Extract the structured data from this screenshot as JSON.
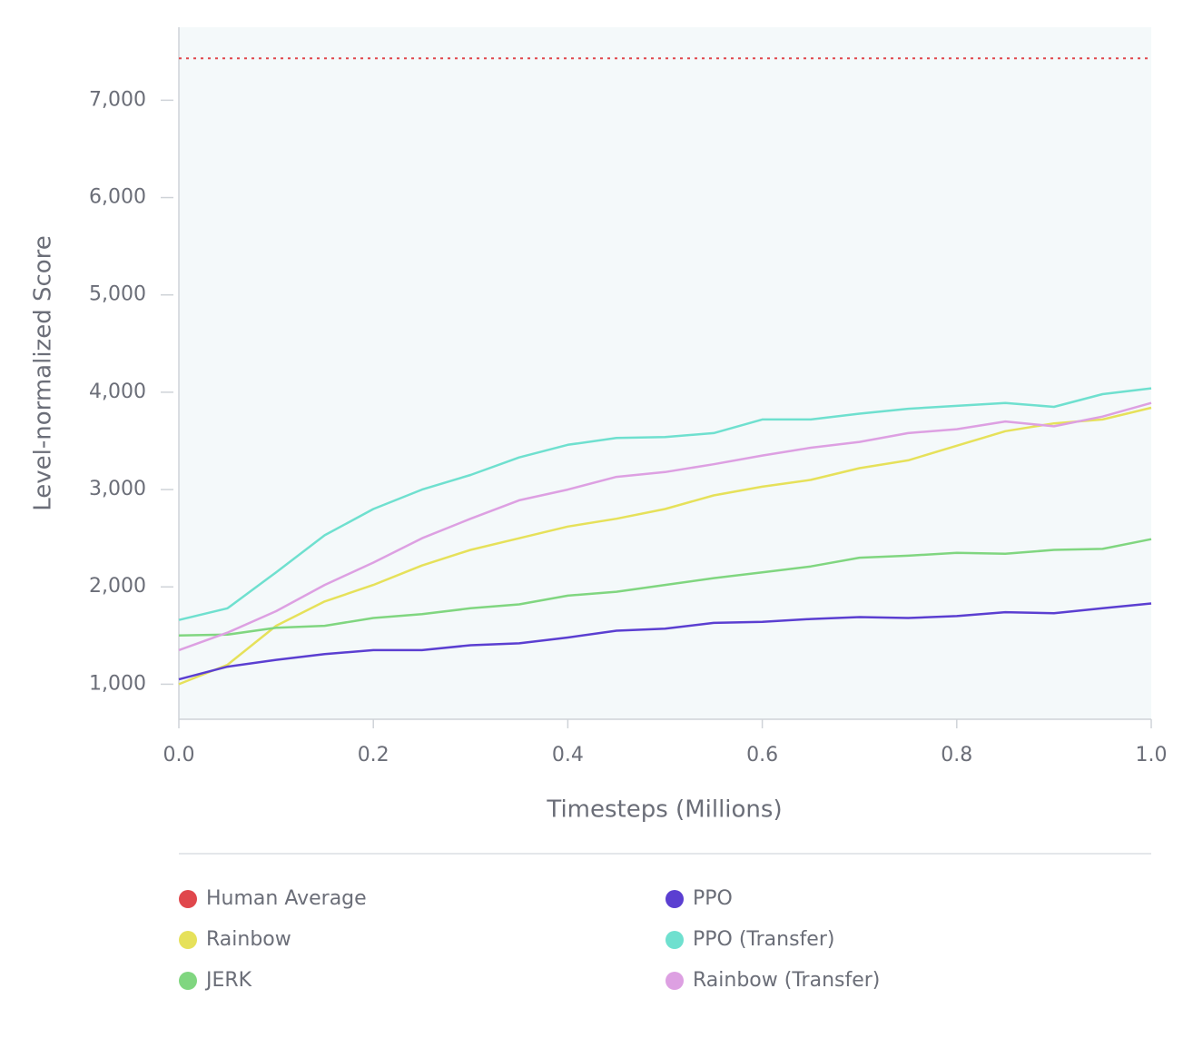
{
  "chart_data": {
    "type": "line",
    "xlabel": "Timesteps (Millions)",
    "ylabel": "Level-normalized Score",
    "x": [
      0,
      0.05,
      0.1,
      0.15,
      0.2,
      0.25,
      0.3,
      0.35,
      0.4,
      0.45,
      0.5,
      0.55,
      0.6,
      0.65,
      0.7,
      0.75,
      0.8,
      0.85,
      0.9,
      0.95,
      1.0
    ],
    "xlim": [
      0,
      1.0
    ],
    "ylim": [
      640,
      7750
    ],
    "xticks": [
      {
        "value": 0,
        "label": "0.0"
      },
      0.2,
      0.4,
      0.6,
      0.8,
      {
        "value": 1.0,
        "label": "1.0"
      }
    ],
    "yticks": [
      {
        "value": 1000,
        "label": "1,000"
      },
      {
        "value": 2000,
        "label": "2,000"
      },
      {
        "value": 3000,
        "label": "3,000"
      },
      {
        "value": 4000,
        "label": "4,000"
      },
      {
        "value": 5000,
        "label": "5,000"
      },
      {
        "value": 6000,
        "label": "6,000"
      },
      {
        "value": 7000,
        "label": "7,000"
      }
    ],
    "series": [
      {
        "name": "Human Average",
        "color": "#e0474c",
        "dotted": true,
        "values": [
          7430,
          7430,
          7430,
          7430,
          7430,
          7430,
          7430,
          7430,
          7430,
          7430,
          7430,
          7430,
          7430,
          7430,
          7430,
          7430,
          7430,
          7430,
          7430,
          7430,
          7430
        ]
      },
      {
        "name": "Rainbow",
        "color": "#e6e15a",
        "values": [
          1000,
          1200,
          1600,
          1850,
          2020,
          2220,
          2380,
          2500,
          2620,
          2700,
          2800,
          2940,
          3030,
          3100,
          3220,
          3300,
          3450,
          3600,
          3680,
          3720,
          3840
        ]
      },
      {
        "name": "JERK",
        "color": "#80d680",
        "values": [
          1500,
          1510,
          1580,
          1600,
          1680,
          1720,
          1780,
          1820,
          1910,
          1950,
          2020,
          2090,
          2150,
          2210,
          2300,
          2320,
          2350,
          2340,
          2380,
          2390,
          2490
        ]
      },
      {
        "name": "PPO",
        "color": "#5b3fd1",
        "values": [
          1050,
          1180,
          1250,
          1310,
          1350,
          1350,
          1400,
          1420,
          1480,
          1550,
          1570,
          1630,
          1640,
          1670,
          1690,
          1680,
          1700,
          1740,
          1730,
          1780,
          1830
        ]
      },
      {
        "name": "PPO (Transfer)",
        "color": "#6fe0cf",
        "values": [
          1660,
          1780,
          2150,
          2530,
          2800,
          3000,
          3150,
          3330,
          3460,
          3530,
          3540,
          3580,
          3720,
          3720,
          3780,
          3830,
          3860,
          3890,
          3850,
          3980,
          4040
        ]
      },
      {
        "name": "Rainbow (Transfer)",
        "color": "#dda0e2",
        "values": [
          1350,
          1530,
          1750,
          2020,
          2250,
          2500,
          2700,
          2890,
          3000,
          3130,
          3180,
          3260,
          3350,
          3430,
          3490,
          3580,
          3620,
          3700,
          3650,
          3750,
          3890
        ]
      }
    ]
  }
}
